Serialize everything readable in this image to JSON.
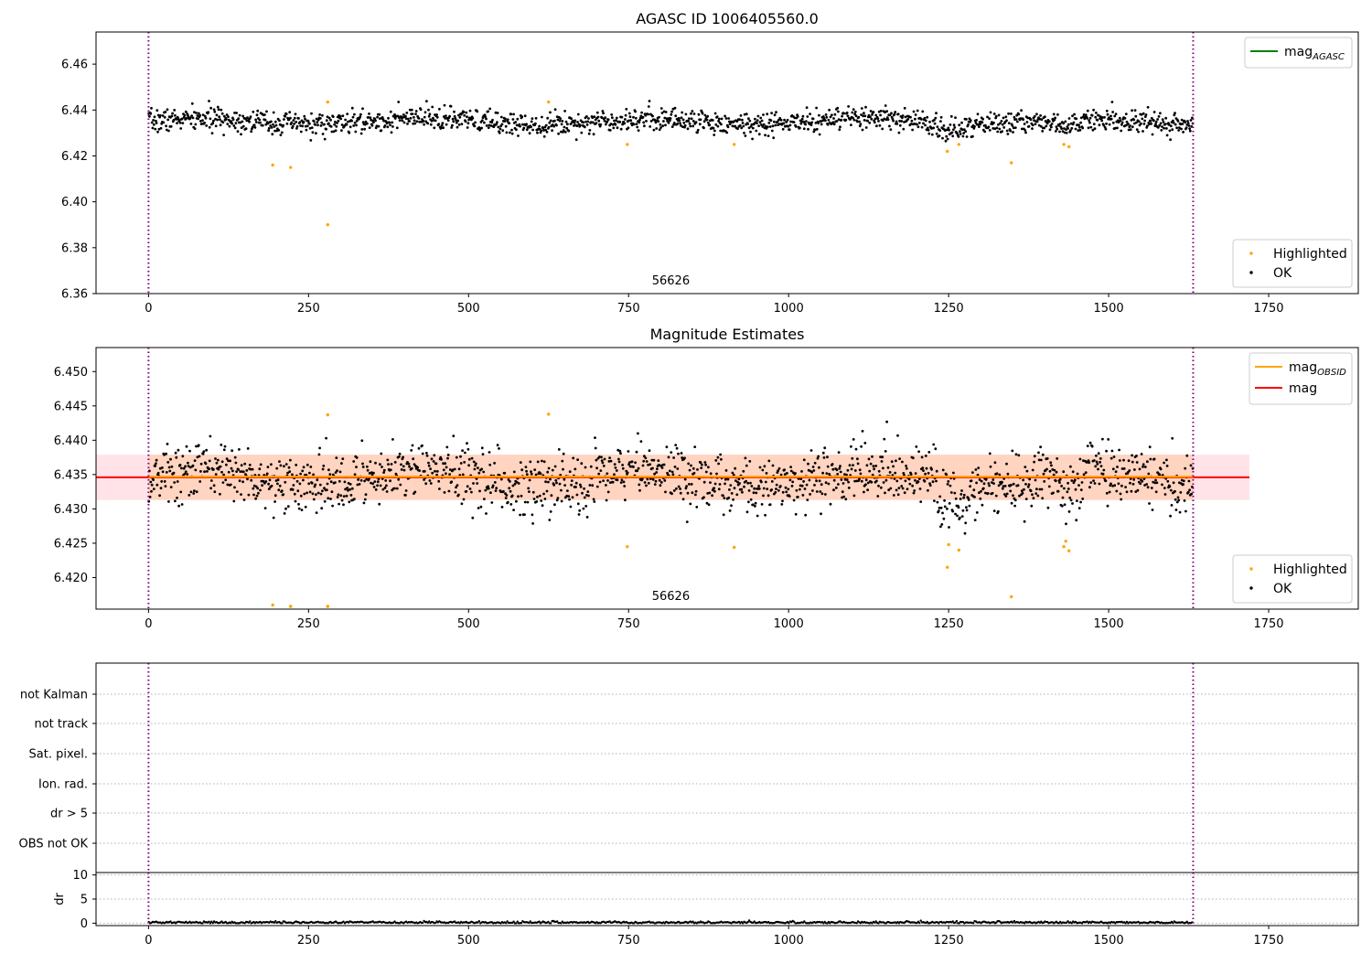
{
  "chart_data": [
    {
      "type": "scatter",
      "title": "AGASC ID 1006405560.0",
      "xlabel": "",
      "ylabel": "",
      "xlim": [
        -82,
        1890
      ],
      "ylim": [
        6.36,
        6.474
      ],
      "xticks": [
        0,
        250,
        500,
        750,
        1000,
        1250,
        1500,
        1750
      ],
      "yticks": [
        6.36,
        6.38,
        6.4,
        6.42,
        6.44,
        6.46
      ],
      "ytick_decimals": 2,
      "obsid_annotation": {
        "x": 816,
        "text": "56626"
      },
      "vlines_x": [
        0,
        1632
      ],
      "ok_band": {
        "center": 6.435,
        "spread": 0.0045,
        "n": 1632,
        "seed": 7
      },
      "series": [
        {
          "name": "Highlighted",
          "color": "#ffa500",
          "x": [
            194,
            222,
            280,
            280,
            625,
            748,
            915,
            1248,
            1266,
            1348,
            1430,
            1438
          ],
          "y": [
            6.416,
            6.415,
            6.39,
            6.4435,
            6.4435,
            6.425,
            6.425,
            6.422,
            6.425,
            6.417,
            6.425,
            6.424
          ]
        },
        {
          "name": "OK",
          "color": "#000000"
        }
      ],
      "legend_upper": [
        {
          "label": "mag",
          "sub": "AGASC",
          "color": "#008000",
          "kind": "line"
        }
      ],
      "legend_lower": [
        {
          "label": "Highlighted",
          "color": "#ffa500",
          "kind": "point"
        },
        {
          "label": "OK",
          "color": "#000000",
          "kind": "point"
        }
      ]
    },
    {
      "type": "scatter",
      "title": "Magnitude Estimates",
      "xlabel": "",
      "ylabel": "",
      "xlim": [
        -82,
        1890
      ],
      "ylim": [
        6.4154,
        6.4535
      ],
      "xticks": [
        0,
        250,
        500,
        750,
        1000,
        1250,
        1500,
        1750
      ],
      "yticks": [
        6.42,
        6.425,
        6.43,
        6.435,
        6.44,
        6.445,
        6.45
      ],
      "ytick_decimals": 3,
      "obsid_annotation": {
        "x": 816,
        "text": "56626"
      },
      "vlines_x": [
        0,
        1632
      ],
      "ok_band": {
        "center": 6.4345,
        "spread": 0.0038,
        "n": 1632,
        "seed": 13
      },
      "mag_line": {
        "y": 6.4346,
        "x_range": [
          -82,
          1720
        ],
        "color": "#ff0000"
      },
      "mag_obsid_line": {
        "y": 6.4347,
        "x_range": [
          0,
          1632
        ],
        "color": "#ffa500"
      },
      "mag_band": {
        "y_range": [
          6.4313,
          6.4379
        ],
        "x_range": [
          -82,
          1720
        ],
        "color": "#ffc0cb"
      },
      "obsid_band": {
        "y_range": [
          6.4313,
          6.4379
        ],
        "x_range": [
          0,
          1632
        ],
        "color": "#ffc8a0"
      },
      "series": [
        {
          "name": "Highlighted",
          "color": "#ffa500",
          "x": [
            194,
            222,
            222,
            280,
            280,
            280,
            625,
            748,
            915,
            1248,
            1250,
            1266,
            1348,
            1430,
            1433,
            1438
          ],
          "y": [
            6.416,
            6.4158,
            6.4158,
            6.4158,
            6.4158,
            6.4437,
            6.4438,
            6.4245,
            6.4244,
            6.4215,
            6.4248,
            6.424,
            6.4172,
            6.4245,
            6.4253,
            6.4239
          ]
        },
        {
          "name": "OK",
          "color": "#000000"
        }
      ],
      "legend_upper": [
        {
          "label": "mag",
          "sub": "OBSID",
          "color": "#ffa500",
          "kind": "line"
        },
        {
          "label": "mag",
          "sub": "",
          "color": "#ff0000",
          "kind": "line"
        }
      ],
      "legend_lower": [
        {
          "label": "Highlighted",
          "color": "#ffa500",
          "kind": "point"
        },
        {
          "label": "OK",
          "color": "#000000",
          "kind": "point"
        }
      ]
    },
    {
      "type": "scatter",
      "title": "",
      "xlim": [
        -82,
        1890
      ],
      "flag_labels": [
        "not Kalman",
        "not track",
        "Sat. pixel.",
        "Ion. rad.",
        "dr > 5",
        "OBS not OK"
      ],
      "vlines_x": [
        0,
        1632
      ]
    },
    {
      "type": "line",
      "title": "",
      "xlabel": "",
      "ylabel": "dr",
      "xlim": [
        -82,
        1890
      ],
      "ylim": [
        -0.5,
        10.5
      ],
      "xticks": [
        0,
        250,
        500,
        750,
        1000,
        1250,
        1500,
        1750
      ],
      "yticks": [
        0,
        5,
        10
      ],
      "ytick_decimals": 0,
      "vlines_x": [
        0,
        1632
      ],
      "dr_band": {
        "center": 0.15,
        "spread": 0.12,
        "n": 1632,
        "seed": 21
      }
    }
  ]
}
